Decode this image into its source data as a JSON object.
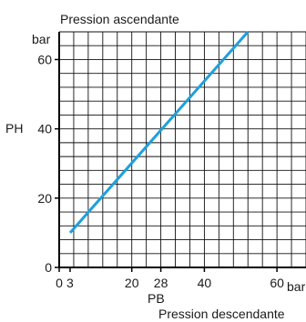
{
  "chart_data": {
    "type": "line",
    "title": "Pression ascendante",
    "subtitle": "Pression descendante",
    "xlabel": "PB",
    "ylabel": "PH",
    "x_unit": "bar",
    "y_unit": "bar",
    "xlim": [
      0,
      68
    ],
    "ylim": [
      0,
      68
    ],
    "grid": true,
    "x_ticks": [
      {
        "value": 0,
        "label": "0"
      },
      {
        "value": 3,
        "label": "3"
      },
      {
        "value": 20,
        "label": "20"
      },
      {
        "value": 28,
        "label": "28"
      },
      {
        "value": 40,
        "label": "40"
      },
      {
        "value": 60,
        "label": "60"
      }
    ],
    "y_ticks": [
      {
        "value": 0,
        "label": "0"
      },
      {
        "value": 20,
        "label": "20"
      },
      {
        "value": 40,
        "label": "40"
      },
      {
        "value": 60,
        "label": "60"
      }
    ],
    "series": [
      {
        "color": "#1ea0dc",
        "x": [
          3,
          52
        ],
        "y": [
          10,
          68
        ]
      }
    ]
  }
}
